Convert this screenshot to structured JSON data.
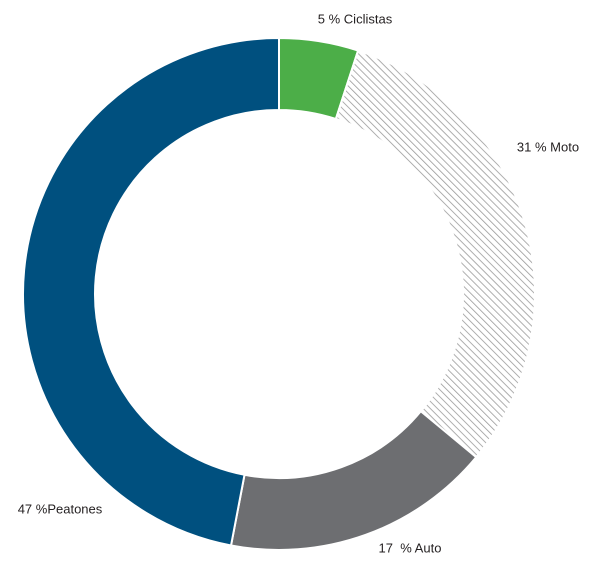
{
  "chart_data": {
    "type": "donut",
    "values": [
      5,
      31,
      17,
      47
    ],
    "value_labels": [
      "5 % Ciclistas",
      "31 % Moto",
      "17  % Auto",
      "47 %Peatones"
    ],
    "colors": [
      "#4cae48",
      "hatch",
      "#6d6e71",
      "#00507f"
    ]
  }
}
